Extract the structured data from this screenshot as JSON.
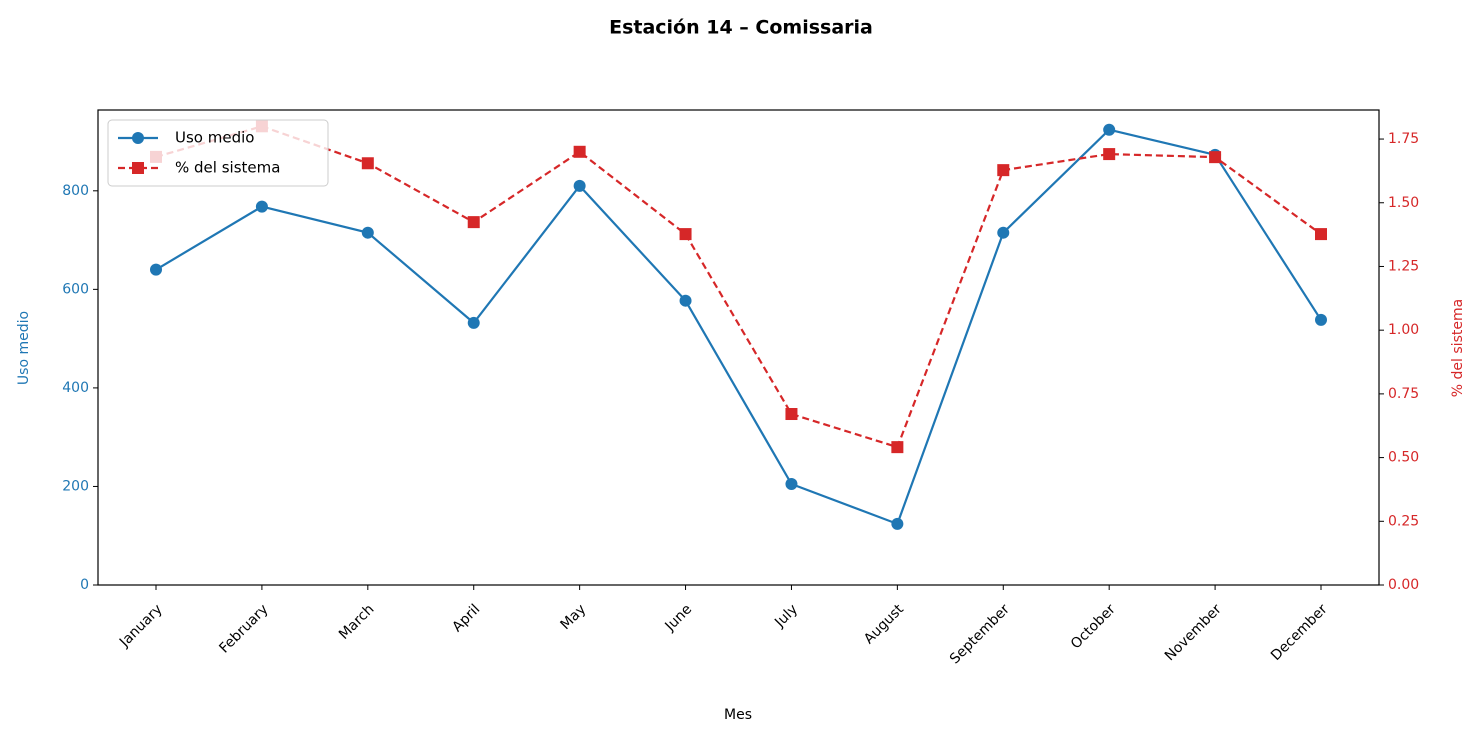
{
  "chart_data": {
    "type": "line",
    "title": "Estación 14 – Comissaria",
    "x_label": "Mes",
    "y_label": "Uso medio",
    "y2_label": "% del sistema",
    "categories": [
      "January",
      "February",
      "March",
      "April",
      "May",
      "June",
      "July",
      "August",
      "September",
      "October",
      "November",
      "December"
    ],
    "series": [
      {
        "name": "Uso medio",
        "color": "#1f77b4",
        "marker": "circle",
        "dash": "solid",
        "values": [
          640,
          768,
          715,
          532,
          810,
          577,
          205,
          124,
          715,
          924,
          873,
          538
        ]
      },
      {
        "name": "% del sistema",
        "color": "#d62728",
        "marker": "square",
        "dash": "dashed",
        "axis": "y2",
        "values": [
          1.68,
          1.8,
          1.655,
          1.424,
          1.7,
          1.377,
          0.671,
          0.541,
          1.628,
          1.691,
          1.679,
          1.377
        ]
      }
    ],
    "ylim": [
      0,
      964
    ],
    "yticks": [
      0,
      200,
      400,
      600,
      800
    ],
    "y2lim": [
      0,
      1.864
    ],
    "y2ticks": [
      {
        "value": 0,
        "label": "0.00"
      },
      {
        "value": 0.25,
        "label": "0.25"
      },
      {
        "value": 0.5,
        "label": "0.50"
      },
      {
        "value": 0.75,
        "label": "0.75"
      },
      {
        "value": 1,
        "label": "1.00"
      },
      {
        "value": 1.25,
        "label": "1.25"
      },
      {
        "value": 1.5,
        "label": "1.50"
      },
      {
        "value": 1.75,
        "label": "1.75"
      }
    ],
    "legend": "upper-left"
  }
}
